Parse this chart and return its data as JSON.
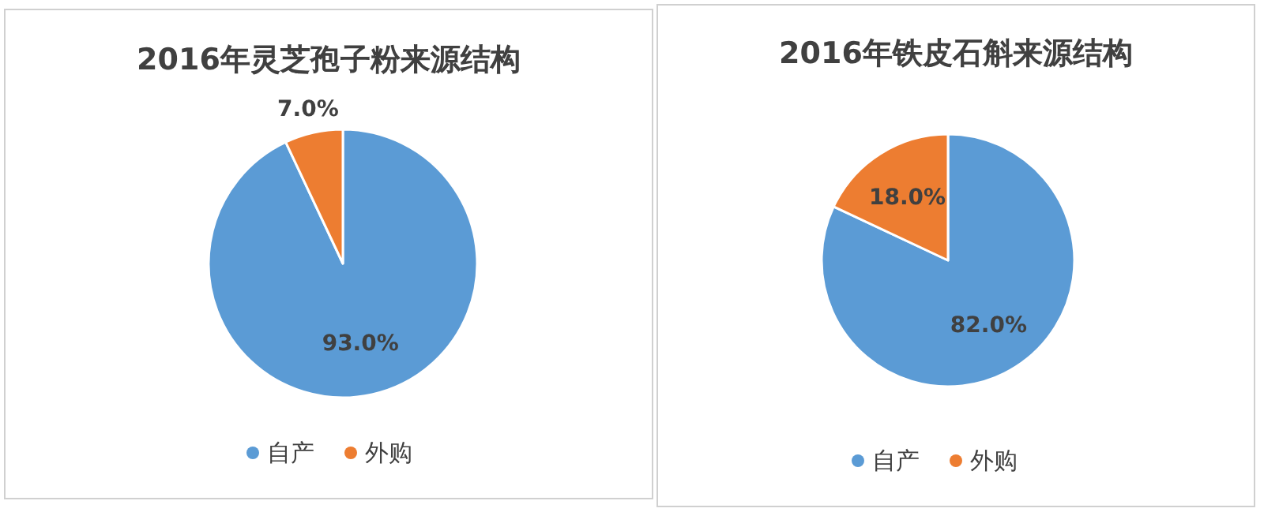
{
  "chart_data": [
    {
      "type": "pie",
      "title": "2016年灵芝孢子粉来源结构",
      "categories": [
        "自产",
        "外购"
      ],
      "values": [
        93,
        7
      ],
      "colors": [
        "#5b9bd5",
        "#ed7d31"
      ],
      "value_labels": [
        "93.0%",
        "7.0%"
      ],
      "legend": "bottom"
    },
    {
      "type": "pie",
      "title": "2016年铁皮石斛来源结构",
      "categories": [
        "自产",
        "外购"
      ],
      "values": [
        82,
        18
      ],
      "colors": [
        "#5b9bd5",
        "#ed7d31"
      ],
      "value_labels": [
        "82.0%",
        "18.0%"
      ],
      "legend": "bottom"
    }
  ]
}
